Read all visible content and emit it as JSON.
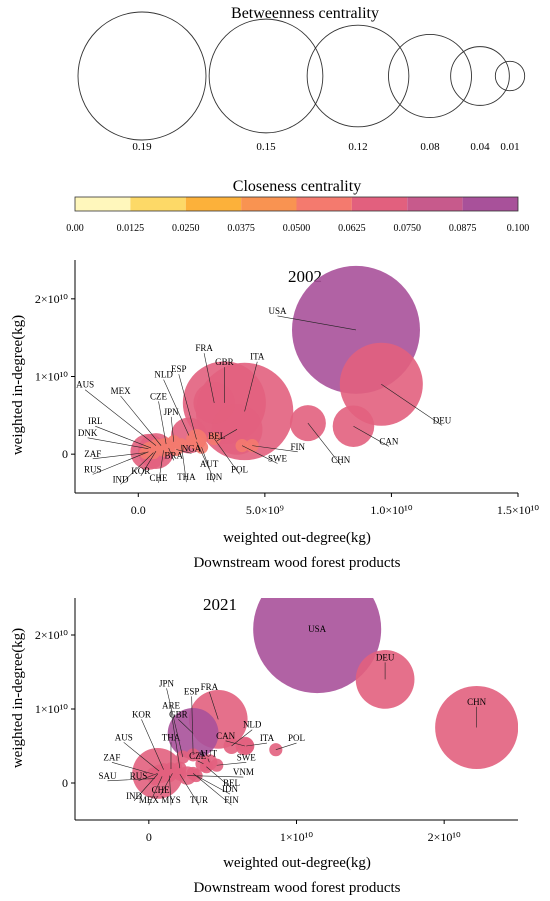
{
  "legend_betweenness": {
    "title": "Betweenness centrality",
    "items": [
      {
        "value": 0.19,
        "label": "0.19"
      },
      {
        "value": 0.15,
        "label": "0.15"
      },
      {
        "value": 0.12,
        "label": "0.12"
      },
      {
        "value": 0.08,
        "label": "0.08"
      },
      {
        "value": 0.04,
        "label": "0.04"
      },
      {
        "value": 0.01,
        "label": "0.01"
      }
    ]
  },
  "legend_closeness": {
    "title": "Closeness centrality",
    "colors": [
      "#FFF7BC",
      "#FDD967",
      "#FCB13A",
      "#F99351",
      "#F47A6E",
      "#E2607E",
      "#C75A8C",
      "#A8519A",
      "#8A4C9E"
    ],
    "ticks": [
      "0.00",
      "0.0125",
      "0.0250",
      "0.0375",
      "0.0500",
      "0.0625",
      "0.0750",
      "0.0875",
      "0.100"
    ]
  },
  "chart_data": [
    {
      "type": "scatter",
      "title": "2002",
      "xlabel": "weighted out-degree(kg)",
      "subtitle": "Downstream wood forest products",
      "ylabel": "weighted in-degree(kg)",
      "xlim": [
        -2500000000.0,
        15000000000.0
      ],
      "ylim": [
        -5000000000.0,
        25000000000.0
      ],
      "xticks": [
        {
          "value": 0,
          "label": "0.0"
        },
        {
          "value": 5000000000.0,
          "label": "5.0×10⁹"
        },
        {
          "value": 10000000000.0,
          "label": "1.0×10¹⁰"
        },
        {
          "value": 15000000000.0,
          "label": "1.5×10¹⁰"
        }
      ],
      "yticks": [
        {
          "value": 0,
          "label": "0"
        },
        {
          "value": 10000000000.0,
          "label": "1×10¹⁰"
        },
        {
          "value": 20000000000.0,
          "label": "2×10¹⁰"
        }
      ],
      "points": [
        {
          "label": "USA",
          "x": 8600000000.0,
          "y": 16000000000.0,
          "betweenness": 0.19,
          "closeness": 0.09,
          "label_x": 5500000000.0,
          "label_y": 17800000000.0
        },
        {
          "label": "DEU",
          "x": 9600000000.0,
          "y": 9000000000.0,
          "betweenness": 0.08,
          "closeness": 0.065,
          "label_x": 12000000000.0,
          "label_y": 3700000000.0
        },
        {
          "label": "ITA",
          "x": 4200000000.0,
          "y": 5500000000.0,
          "betweenness": 0.11,
          "closeness": 0.068,
          "label_x": 4700000000.0,
          "label_y": 11900000000.0
        },
        {
          "label": "GBR",
          "x": 3400000000.0,
          "y": 6600000000.0,
          "betweenness": 0.08,
          "closeness": 0.066,
          "label_x": 3400000000.0,
          "label_y": 11200000000.0
        },
        {
          "label": "FRA",
          "x": 3000000000.0,
          "y": 6600000000.0,
          "betweenness": 0.02,
          "closeness": 0.066,
          "label_x": 2600000000.0,
          "label_y": 13000000000.0
        },
        {
          "label": "CAN",
          "x": 8500000000.0,
          "y": 3600000000.0,
          "betweenness": 0.02,
          "closeness": 0.066,
          "label_x": 9900000000.0,
          "label_y": 1000000000.0
        },
        {
          "label": "CHN",
          "x": 6700000000.0,
          "y": 4000000000.0,
          "betweenness": 0.015,
          "closeness": 0.064,
          "label_x": 8000000000.0,
          "label_y": -1400000000.0
        },
        {
          "label": "BEL",
          "x": 3900000000.0,
          "y": 3200000000.0,
          "betweenness": 0.03,
          "closeness": 0.07,
          "label_x": 3100000000.0,
          "label_y": 1700000000.0
        },
        {
          "label": "FIN",
          "x": 4500000000.0,
          "y": 1100000000.0,
          "betweenness": 0.002,
          "closeness": 0.05,
          "label_x": 6300000000.0,
          "label_y": 300000000.0
        },
        {
          "label": "SWE",
          "x": 4100000000.0,
          "y": 1100000000.0,
          "betweenness": 0.002,
          "closeness": 0.05,
          "label_x": 5500000000.0,
          "label_y": -1200000000.0
        },
        {
          "label": "NLD",
          "x": 2000000000.0,
          "y": 2400000000.0,
          "betweenness": 0.015,
          "closeness": 0.066,
          "label_x": 1000000000.0,
          "label_y": 9600000000.0
        },
        {
          "label": "ESP",
          "x": 2300000000.0,
          "y": 1900000000.0,
          "betweenness": 0.005,
          "closeness": 0.06,
          "label_x": 1600000000.0,
          "label_y": 10300000000.0
        },
        {
          "label": "JPN",
          "x": 1400000000.0,
          "y": 1600000000.0,
          "betweenness": 0.002,
          "closeness": 0.055,
          "label_x": 1300000000.0,
          "label_y": 4800000000.0
        },
        {
          "label": "CZE",
          "x": 1100000000.0,
          "y": 1300000000.0,
          "betweenness": 0.002,
          "closeness": 0.055,
          "label_x": 800000000.0,
          "label_y": 6800000000.0
        },
        {
          "label": "MEX",
          "x": 900000000.0,
          "y": 1100000000.0,
          "betweenness": 0.002,
          "closeness": 0.055,
          "label_x": -700000000.0,
          "label_y": 7500000000.0
        },
        {
          "label": "AUS",
          "x": 700000000.0,
          "y": 1100000000.0,
          "betweenness": 0.002,
          "closeness": 0.055,
          "label_x": -2100000000.0,
          "label_y": 8300000000.0
        },
        {
          "label": "IRL",
          "x": 500000000.0,
          "y": 800000000.0,
          "betweenness": 0.002,
          "closeness": 0.055,
          "label_x": -1700000000.0,
          "label_y": 3600000000.0
        },
        {
          "label": "DNK",
          "x": 400000000.0,
          "y": 700000000.0,
          "betweenness": 0.002,
          "closeness": 0.055,
          "label_x": -2000000000.0,
          "label_y": 2100000000.0
        },
        {
          "label": "ZAF",
          "x": 300000000.0,
          "y": 200000000.0,
          "betweenness": 0.002,
          "closeness": 0.055,
          "label_x": -1800000000.0,
          "label_y": -600000000.0
        },
        {
          "label": "RUS",
          "x": 400000000.0,
          "y": 300000000.0,
          "betweenness": 0.015,
          "closeness": 0.066,
          "label_x": -1800000000.0,
          "label_y": -2600000000.0
        },
        {
          "label": "IND",
          "x": 600000000.0,
          "y": 200000000.0,
          "betweenness": 0.002,
          "closeness": 0.055,
          "label_x": -700000000.0,
          "label_y": -3900000000.0
        },
        {
          "label": "KOR",
          "x": 700000000.0,
          "y": 400000000.0,
          "betweenness": 0.015,
          "closeness": 0.066,
          "label_x": 100000000.0,
          "label_y": -2800000000.0
        },
        {
          "label": "CHE",
          "x": 1000000000.0,
          "y": 500000000.0,
          "betweenness": 0.002,
          "closeness": 0.055,
          "label_x": 800000000.0,
          "label_y": -3700000000.0
        },
        {
          "label": "BRA",
          "x": 1200000000.0,
          "y": 800000000.0,
          "betweenness": 0.002,
          "closeness": 0.055,
          "label_x": 1400000000.0,
          "label_y": -800000000.0
        },
        {
          "label": "NGA",
          "x": 1500000000.0,
          "y": 600000000.0,
          "betweenness": 0.002,
          "closeness": 0.055,
          "label_x": 2100000000.0,
          "label_y": 100000000.0
        },
        {
          "label": "THA",
          "x": 1700000000.0,
          "y": 1200000000.0,
          "betweenness": 0.002,
          "closeness": 0.055,
          "label_x": 1900000000.0,
          "label_y": -3600000000.0
        },
        {
          "label": "AUT",
          "x": 2300000000.0,
          "y": 1600000000.0,
          "betweenness": 0.002,
          "closeness": 0.055,
          "label_x": 2800000000.0,
          "label_y": -1900000000.0
        },
        {
          "label": "IDN",
          "x": 2500000000.0,
          "y": 900000000.0,
          "betweenness": 0.002,
          "closeness": 0.055,
          "label_x": 3000000000.0,
          "label_y": -3600000000.0
        },
        {
          "label": "POL",
          "x": 3000000000.0,
          "y": 2000000000.0,
          "betweenness": 0.002,
          "closeness": 0.055,
          "label_x": 4000000000.0,
          "label_y": -2600000000.0
        }
      ]
    },
    {
      "type": "scatter",
      "title": "2021",
      "xlabel": "weighted out-degree(kg)",
      "subtitle": "Downstream wood forest products",
      "ylabel": "weighted in-degree(kg)",
      "xlim": [
        -5000000000.0,
        25000000000.0
      ],
      "ylim": [
        -5000000000.0,
        25000000000.0
      ],
      "xticks": [
        {
          "value": 0,
          "label": "0"
        },
        {
          "value": 10000000000.0,
          "label": "1×10¹⁰"
        },
        {
          "value": 20000000000.0,
          "label": "2×10¹⁰"
        }
      ],
      "yticks": [
        {
          "value": 0,
          "label": "0"
        },
        {
          "value": 10000000000.0,
          "label": "1×10¹⁰"
        },
        {
          "value": 20000000000.0,
          "label": "2×10¹⁰"
        }
      ],
      "points": [
        {
          "label": "USA",
          "x": 11400000000.0,
          "y": 20800000000.0,
          "betweenness": 0.19,
          "closeness": 0.088,
          "label_x": 11400000000.0,
          "label_y": 20800000000.0,
          "inside": true
        },
        {
          "label": "DEU",
          "x": 16000000000.0,
          "y": 14000000000.0,
          "betweenness": 0.04,
          "closeness": 0.07,
          "label_x": 16000000000.0,
          "label_y": 16300000000.0
        },
        {
          "label": "CHN",
          "x": 22200000000.0,
          "y": 7500000000.0,
          "betweenness": 0.08,
          "closeness": 0.068,
          "label_x": 22200000000.0,
          "label_y": 10300000000.0
        },
        {
          "label": "FRA",
          "x": 4700000000.0,
          "y": 8600000000.0,
          "betweenness": 0.04,
          "closeness": 0.066,
          "label_x": 4100000000.0,
          "label_y": 12300000000.0
        },
        {
          "label": "GBR",
          "x": 3000000000.0,
          "y": 6700000000.0,
          "betweenness": 0.03,
          "closeness": 0.09,
          "label_x": 2000000000.0,
          "label_y": 8600000000.0
        },
        {
          "label": "CAN",
          "x": 6500000000.0,
          "y": 5000000000.0,
          "betweenness": 0.004,
          "closeness": 0.066,
          "label_x": 5200000000.0,
          "label_y": 5700000000.0
        },
        {
          "label": "NLD",
          "x": 5600000000.0,
          "y": 5000000000.0,
          "betweenness": 0.003,
          "closeness": 0.066,
          "label_x": 7000000000.0,
          "label_y": 7200000000.0
        },
        {
          "label": "ITA",
          "x": 6600000000.0,
          "y": 5000000000.0,
          "betweenness": 0.003,
          "closeness": 0.066,
          "label_x": 8000000000.0,
          "label_y": 5400000000.0
        },
        {
          "label": "POL",
          "x": 8600000000.0,
          "y": 4500000000.0,
          "betweenness": 0.002,
          "closeness": 0.066,
          "label_x": 10000000000.0,
          "label_y": 5400000000.0
        },
        {
          "label": "AUT",
          "x": 4100000000.0,
          "y": 2800000000.0,
          "betweenness": 0.003,
          "closeness": 0.066,
          "label_x": 4000000000.0,
          "label_y": 3300000000.0
        },
        {
          "label": "CZE",
          "x": 3700000000.0,
          "y": 2600000000.0,
          "betweenness": 0.003,
          "closeness": 0.066,
          "label_x": 3300000000.0,
          "label_y": 3000000000.0
        },
        {
          "label": "SWE",
          "x": 4600000000.0,
          "y": 2400000000.0,
          "betweenness": 0.002,
          "closeness": 0.066,
          "label_x": 6600000000.0,
          "label_y": 2800000000.0
        },
        {
          "label": "VNM",
          "x": 2600000000.0,
          "y": 1000000000.0,
          "betweenness": 0.004,
          "closeness": 0.066,
          "label_x": 6400000000.0,
          "label_y": 800000000.0
        },
        {
          "label": "BEL",
          "x": 3900000000.0,
          "y": 2200000000.0,
          "betweenness": 0.002,
          "closeness": 0.066,
          "label_x": 5600000000.0,
          "label_y": -700000000.0
        },
        {
          "label": "IDN",
          "x": 3200000000.0,
          "y": 1000000000.0,
          "betweenness": 0.002,
          "closeness": 0.066,
          "label_x": 5500000000.0,
          "label_y": -1500000000.0
        },
        {
          "label": "FIN",
          "x": 3000000000.0,
          "y": 1300000000.0,
          "betweenness": 0.002,
          "closeness": 0.066,
          "label_x": 5600000000.0,
          "label_y": -3000000000.0
        },
        {
          "label": "TUR",
          "x": 2100000000.0,
          "y": 1200000000.0,
          "betweenness": 0.002,
          "closeness": 0.066,
          "label_x": 3400000000.0,
          "label_y": -3000000000.0
        },
        {
          "label": "MYS",
          "x": 1400000000.0,
          "y": 1000000000.0,
          "betweenness": 0.002,
          "closeness": 0.066,
          "label_x": 1500000000.0,
          "label_y": -3000000000.0
        },
        {
          "label": "CHE",
          "x": 1600000000.0,
          "y": 1300000000.0,
          "betweenness": 0.002,
          "closeness": 0.066,
          "label_x": 800000000.0,
          "label_y": -1600000000.0
        },
        {
          "label": "MEX",
          "x": 900000000.0,
          "y": 900000000.0,
          "betweenness": 0.002,
          "closeness": 0.066,
          "label_x": 0,
          "label_y": -3000000000.0
        },
        {
          "label": "IND",
          "x": 600000000.0,
          "y": 1200000000.0,
          "betweenness": 0.002,
          "closeness": 0.066,
          "label_x": -1000000000.0,
          "label_y": -2400000000.0
        },
        {
          "label": "RUS",
          "x": 600000000.0,
          "y": 1300000000.0,
          "betweenness": 0.03,
          "closeness": 0.075,
          "label_x": -700000000.0,
          "label_y": 300000000.0
        },
        {
          "label": "SAU",
          "x": 400000000.0,
          "y": 600000000.0,
          "betweenness": 0.002,
          "closeness": 0.066,
          "label_x": -2800000000.0,
          "label_y": 300000000.0
        },
        {
          "label": "ZAF",
          "x": 300000000.0,
          "y": 1200000000.0,
          "betweenness": 0.002,
          "closeness": 0.066,
          "label_x": -2500000000.0,
          "label_y": 2800000000.0
        },
        {
          "label": "AUS",
          "x": 700000000.0,
          "y": 1600000000.0,
          "betweenness": 0.002,
          "closeness": 0.066,
          "label_x": -1700000000.0,
          "label_y": 5500000000.0
        },
        {
          "label": "KOR",
          "x": 1000000000.0,
          "y": 1800000000.0,
          "betweenness": 0.002,
          "closeness": 0.066,
          "label_x": -500000000.0,
          "label_y": 8600000000.0
        },
        {
          "label": "THA",
          "x": 1500000000.0,
          "y": 1900000000.0,
          "betweenness": 0.002,
          "closeness": 0.066,
          "label_x": 1500000000.0,
          "label_y": 5500000000.0
        },
        {
          "label": "ARE",
          "x": 2100000000.0,
          "y": 2000000000.0,
          "betweenness": 0.002,
          "closeness": 0.066,
          "label_x": 1500000000.0,
          "label_y": 9800000000.0
        },
        {
          "label": "JPN",
          "x": 2300000000.0,
          "y": 3500000000.0,
          "betweenness": 0.002,
          "closeness": 0.066,
          "label_x": 1200000000.0,
          "label_y": 12800000000.0
        },
        {
          "label": "ESP",
          "x": 3000000000.0,
          "y": 3800000000.0,
          "betweenness": 0.002,
          "closeness": 0.066,
          "label_x": 2900000000.0,
          "label_y": 11700000000.0
        }
      ]
    }
  ]
}
